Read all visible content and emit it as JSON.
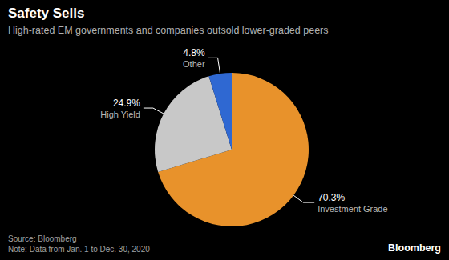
{
  "chart_data": {
    "type": "pie",
    "title": "Safety Sells",
    "subtitle": "High-rated EM governments and companies outsold lower-graded peers",
    "categories": [
      "Investment Grade",
      "High Yield",
      "Other"
    ],
    "values": [
      70.3,
      24.9,
      4.8
    ],
    "value_labels": [
      "70.3%",
      "24.9%",
      "4.8%"
    ],
    "colors": [
      "#e8922b",
      "#c8c8c8",
      "#2f68d2"
    ],
    "data_labels": true,
    "source": "Source: Bloomberg",
    "note": "Note: Data from Jan. 1 to Dec. 30, 2020",
    "logo": "Bloomberg"
  }
}
